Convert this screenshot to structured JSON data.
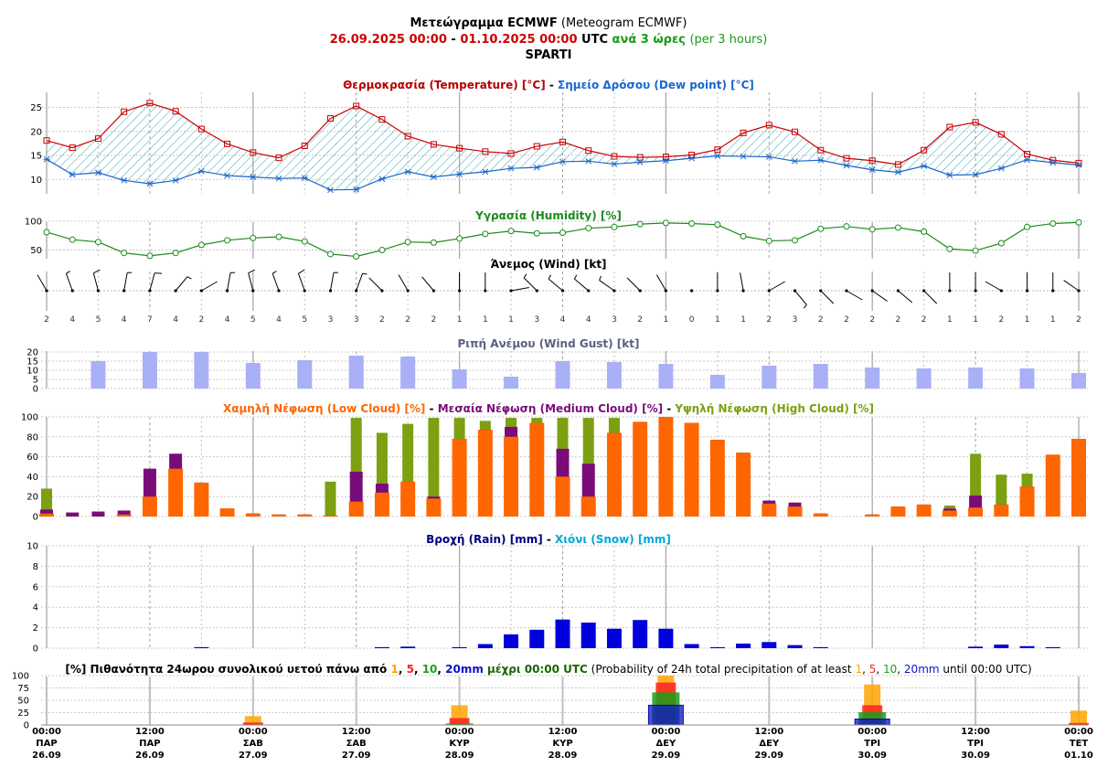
{
  "header": {
    "line1_bold": "Μετεώγραμμα ECMWF",
    "line1_rest": "(Meteogram ECMWF)",
    "date_from": "26.09.2025 00:00",
    "dash": "-",
    "date_to": "01.10.2025 00:00",
    "utc": "UTC",
    "step_gr": "ανά 3 ώρες",
    "step_en": "(per 3 hours)",
    "station": "SPARTI"
  },
  "colors": {
    "temp": "#cc0000",
    "dew": "#1a66cc",
    "humidity": "#1a8a1a",
    "gust": "#aab0f5",
    "low": "#ff6600",
    "medium": "#7a0c7a",
    "high": "#7ca010",
    "rain": "#0000dd",
    "snow": "#00a8d8",
    "grid": "#999999",
    "p1": "#ffa500",
    "p5": "#ff2020",
    "p10": "#1aa01a",
    "p20": "#1010cc"
  },
  "chart_data": [
    {
      "id": "temperature",
      "type": "line",
      "title_parts": [
        {
          "text": "Θερμοκρασία (Temperature) [°C]",
          "color": "#b30000"
        },
        {
          "text": " - ",
          "color": "#000000"
        },
        {
          "text": "Σημείο Δρόσου (Dew point) [°C]",
          "color": "#1a66cc"
        }
      ],
      "yticks": [
        10,
        15,
        20,
        25
      ],
      "ylim": [
        7,
        27
      ],
      "series": [
        {
          "name": "Θερμοκρασία (Temperature) [°C]",
          "values": [
            18.1,
            16.6,
            18.5,
            24.1,
            25.9,
            24.2,
            20.5,
            17.4,
            15.6,
            14.5,
            17.0,
            22.7,
            25.3,
            22.5,
            19.0,
            17.3,
            16.5,
            15.8,
            15.4,
            16.9,
            17.8,
            16.0,
            14.8,
            14.6,
            14.7,
            15.1,
            16.2,
            19.7,
            21.3,
            19.9,
            16.1,
            14.4,
            13.9,
            13.1,
            16.1,
            20.9,
            21.9,
            19.4,
            15.3,
            14.0,
            13.4
          ]
        },
        {
          "name": "Σημείο Δρόσου (Dew point) [°C]",
          "values": [
            14.2,
            11.0,
            11.4,
            9.8,
            9.1,
            9.8,
            11.7,
            10.8,
            10.5,
            10.2,
            10.3,
            7.8,
            7.9,
            10.1,
            11.6,
            10.5,
            11.1,
            11.6,
            12.3,
            12.5,
            13.7,
            13.8,
            13.2,
            13.6,
            13.9,
            14.4,
            14.9,
            14.8,
            14.7,
            13.8,
            14.0,
            12.9,
            12.0,
            11.5,
            12.8,
            10.9,
            11.0,
            12.3,
            14.1,
            13.5,
            13.0
          ]
        }
      ]
    },
    {
      "id": "humidity",
      "type": "line",
      "title": "Υγρασία (Humidity) [%]",
      "yticks": [
        50,
        100
      ],
      "ylim": [
        35,
        100
      ],
      "series": [
        {
          "name": "Υγρασία (Humidity) [%]",
          "values": [
            81,
            68,
            64,
            45,
            40,
            45,
            59,
            67,
            71,
            73,
            65,
            43,
            39,
            50,
            64,
            63,
            70,
            78,
            83,
            79,
            80,
            88,
            90,
            95,
            97,
            96,
            94,
            74,
            66,
            67,
            87,
            91,
            86,
            89,
            82,
            52,
            49,
            62,
            90,
            96,
            98
          ]
        }
      ]
    },
    {
      "id": "wind",
      "type": "table",
      "title": "Άνεμος (Wind) [kt]",
      "speed_labels": [
        "2",
        "4",
        "5",
        "4",
        "7",
        "4",
        "2",
        "4",
        "5",
        "4",
        "5",
        "3",
        "3",
        "2",
        "2",
        "2",
        "1",
        "1",
        "1",
        "3",
        "4",
        "4",
        "3",
        "2",
        "1",
        "0",
        "1",
        "1",
        "2",
        "3",
        "2",
        "2",
        "2",
        "2",
        "2",
        "1",
        "1",
        "2",
        "1",
        "1",
        "2"
      ],
      "directions_deg": [
        330,
        340,
        345,
        10,
        15,
        40,
        60,
        10,
        345,
        340,
        340,
        10,
        20,
        315,
        330,
        320,
        0,
        0,
        80,
        315,
        310,
        310,
        305,
        315,
        330,
        0,
        0,
        350,
        60,
        140,
        135,
        120,
        125,
        130,
        135,
        0,
        0,
        300,
        0,
        0,
        305
      ]
    },
    {
      "id": "gust",
      "type": "bar",
      "title": "Ριπή Ανέμου (Wind Gust) [kt]",
      "yticks": [
        0,
        5,
        10,
        15,
        20
      ],
      "ylim": [
        0,
        20
      ],
      "values": [
        15,
        20,
        20,
        14,
        15.5,
        18,
        17.5,
        10.5,
        6.5,
        15,
        14.5,
        13.5,
        7.5,
        12.5,
        13.5,
        11.5,
        11,
        11.5,
        11,
        8.5
      ]
    },
    {
      "id": "clouds",
      "type": "bar",
      "title_parts": [
        {
          "text": "Χαμηλή Νέφωση (Low Cloud) [%]",
          "color": "#ff6600"
        },
        {
          "text": " - ",
          "color": "#000000"
        },
        {
          "text": "Μεσαία Νέφωση (Medium Cloud) [%]",
          "color": "#7a0c7a"
        },
        {
          "text": " - ",
          "color": "#000000"
        },
        {
          "text": "Υψηλή Νέφωση (High Cloud) [%]",
          "color": "#7ca010"
        }
      ],
      "yticks": [
        0,
        20,
        40,
        60,
        80,
        100
      ],
      "ylim": [
        0,
        100
      ],
      "series": [
        {
          "name": "Χαμηλή Νέφωση (Low Cloud) [%]",
          "values": [
            3,
            0,
            0,
            2,
            20,
            48,
            34,
            8,
            3,
            2,
            2,
            1,
            15,
            24,
            35,
            18,
            78,
            87,
            80,
            94,
            40,
            20,
            84,
            95,
            100,
            94,
            77,
            64,
            13,
            10,
            3,
            0,
            2,
            10,
            12,
            6,
            9,
            12,
            30,
            62,
            78
          ]
        },
        {
          "name": "Μεσαία Νέφωση (Medium Cloud) [%]",
          "values": [
            7,
            4,
            5,
            6,
            48,
            63,
            34,
            8,
            3,
            2,
            2,
            1,
            45,
            33,
            35,
            20,
            78,
            87,
            90,
            94,
            68,
            53,
            84,
            95,
            100,
            94,
            77,
            64,
            16,
            14,
            3,
            0,
            2,
            10,
            12,
            8,
            21,
            12,
            30,
            62,
            78
          ]
        },
        {
          "name": "Υψηλή Νέφωση (High Cloud) [%]",
          "values": [
            28,
            4,
            5,
            6,
            48,
            63,
            34,
            8,
            3,
            2,
            2,
            35,
            99,
            84,
            93,
            99,
            99,
            96,
            99,
            99,
            99,
            99,
            99,
            95,
            100,
            94,
            77,
            64,
            16,
            14,
            3,
            0,
            2,
            10,
            12,
            11,
            63,
            42,
            43,
            62,
            78
          ]
        }
      ]
    },
    {
      "id": "precip",
      "type": "bar",
      "title_parts": [
        {
          "text": "Βροχή (Rain) [mm]",
          "color": "#000080"
        },
        {
          "text": " - ",
          "color": "#000000"
        },
        {
          "text": "Χιόνι (Snow) [mm]",
          "color": "#00a8d8"
        }
      ],
      "yticks": [
        0,
        2,
        4,
        6,
        8,
        10
      ],
      "ylim": [
        0,
        10
      ],
      "series": [
        {
          "name": "Βροχή (Rain) [mm]",
          "values": [
            0,
            0,
            0,
            0,
            0,
            0,
            0.1,
            0,
            0,
            0,
            0,
            0,
            0,
            0.1,
            0.15,
            0,
            0.1,
            0.4,
            1.35,
            1.8,
            2.8,
            2.5,
            1.9,
            2.75,
            1.9,
            0.4,
            0.1,
            0.45,
            0.6,
            0.3,
            0.1,
            0,
            0,
            0,
            0,
            0,
            0.15,
            0.35,
            0.2,
            0.1,
            0
          ]
        }
      ]
    },
    {
      "id": "probability",
      "type": "bar",
      "title_parts": [
        {
          "text": "[%] Πιθανότητα 24ωρου συνολικού υετού πάνω από ",
          "color": "#000000",
          "bold": true
        },
        {
          "text": "1",
          "color": "#ffa500",
          "bold": true
        },
        {
          "text": ", ",
          "color": "#000000",
          "bold": true
        },
        {
          "text": "5",
          "color": "#ff2020",
          "bold": true
        },
        {
          "text": ", ",
          "color": "#000000",
          "bold": true
        },
        {
          "text": "10",
          "color": "#1aa01a",
          "bold": true
        },
        {
          "text": ", ",
          "color": "#000000",
          "bold": true
        },
        {
          "text": "20mm",
          "color": "#1010cc",
          "bold": true
        },
        {
          "text": " μέχρι 00:00 UTC",
          "color": "#1a6600",
          "bold": true
        },
        {
          "text": " (Probability of 24h total precipitation of at least ",
          "color": "#000000",
          "bold": false
        },
        {
          "text": "1",
          "color": "#ffa500",
          "bold": false
        },
        {
          "text": ", ",
          "color": "#000000",
          "bold": false
        },
        {
          "text": "5",
          "color": "#ff2020",
          "bold": false
        },
        {
          "text": ", ",
          "color": "#000000",
          "bold": false
        },
        {
          "text": "10",
          "color": "#1aa01a",
          "bold": false
        },
        {
          "text": ", ",
          "color": "#000000",
          "bold": false
        },
        {
          "text": "20mm",
          "color": "#1010cc",
          "bold": false
        },
        {
          "text": " until 00:00 UTC)",
          "color": "#000000",
          "bold": false
        }
      ],
      "yticks": [
        0,
        25,
        50,
        75,
        100
      ],
      "ylim": [
        0,
        100
      ],
      "categories": [
        "27.09",
        "28.09",
        "29.09",
        "30.09",
        "01.10"
      ],
      "series": [
        {
          "name": "1",
          "values": [
            18,
            40,
            100,
            82,
            29
          ]
        },
        {
          "name": "5",
          "values": [
            5,
            14,
            86,
            40,
            4
          ]
        },
        {
          "name": "10",
          "values": [
            0,
            3,
            66,
            26,
            0
          ]
        },
        {
          "name": "20mm",
          "values": [
            0,
            0,
            40,
            12,
            0
          ]
        }
      ]
    }
  ],
  "x_axis": {
    "labels": [
      {
        "time": "00:00",
        "day": "ΠΑΡ",
        "date": "26.09"
      },
      {
        "time": "12:00",
        "day": "ΠΑΡ",
        "date": "26.09"
      },
      {
        "time": "00:00",
        "day": "ΣΑΒ",
        "date": "27.09"
      },
      {
        "time": "12:00",
        "day": "ΣΑΒ",
        "date": "27.09"
      },
      {
        "time": "00:00",
        "day": "ΚΥΡ",
        "date": "28.09"
      },
      {
        "time": "12:00",
        "day": "ΚΥΡ",
        "date": "28.09"
      },
      {
        "time": "00:00",
        "day": "ΔΕΥ",
        "date": "29.09"
      },
      {
        "time": "12:00",
        "day": "ΔΕΥ",
        "date": "29.09"
      },
      {
        "time": "00:00",
        "day": "ΤΡΙ",
        "date": "30.09"
      },
      {
        "time": "12:00",
        "day": "ΤΡΙ",
        "date": "30.09"
      },
      {
        "time": "00:00",
        "day": "ΤΕΤ",
        "date": "01.10"
      }
    ]
  }
}
